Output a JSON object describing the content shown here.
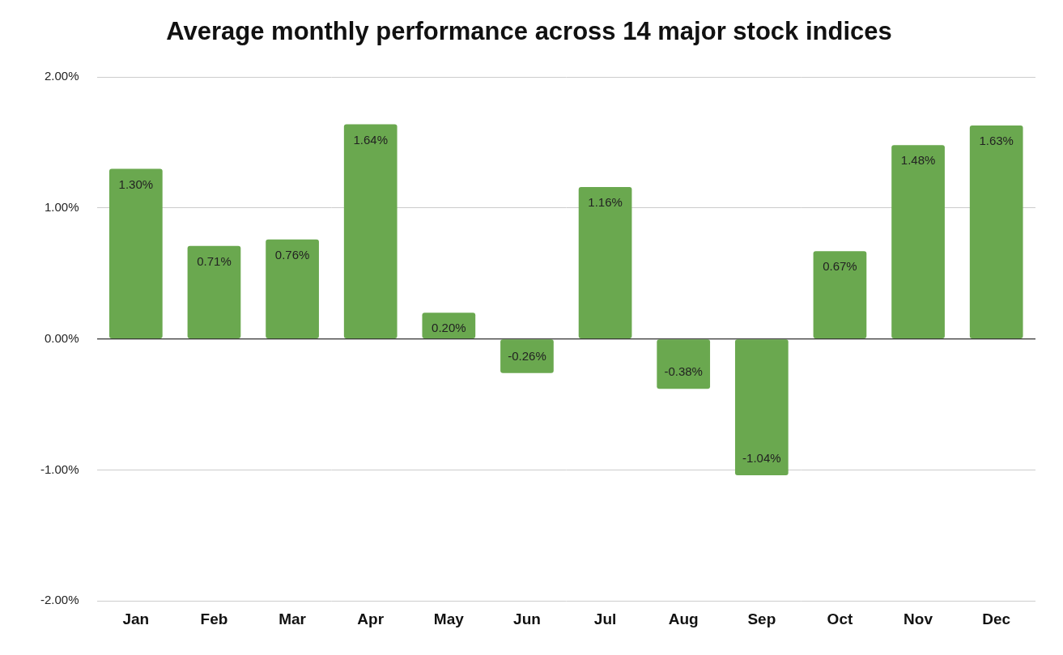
{
  "chart_data": {
    "type": "bar",
    "title": "Average monthly performance across 14 major stock indices",
    "categories": [
      "Jan",
      "Feb",
      "Mar",
      "Apr",
      "May",
      "Jun",
      "Jul",
      "Aug",
      "Sep",
      "Oct",
      "Nov",
      "Dec"
    ],
    "values": [
      1.3,
      0.71,
      0.76,
      1.64,
      0.2,
      -0.26,
      1.16,
      -0.38,
      -1.04,
      0.67,
      1.48,
      1.63
    ],
    "value_labels": [
      "1.30%",
      "0.71%",
      "0.76%",
      "1.64%",
      "0.20%",
      "-0.26%",
      "1.16%",
      "-0.38%",
      "-1.04%",
      "0.67%",
      "1.48%",
      "1.63%"
    ],
    "color": "#6aa84f",
    "ylim": [
      -2,
      2
    ],
    "yticks": [
      {
        "value": -2,
        "label": "-2.00%"
      },
      {
        "value": -1,
        "label": "-1.00%"
      },
      {
        "value": 0,
        "label": "0.00%"
      },
      {
        "value": 1,
        "label": "1.00%"
      },
      {
        "value": 2,
        "label": "2.00%"
      }
    ],
    "grid": true,
    "data_labels": true
  }
}
